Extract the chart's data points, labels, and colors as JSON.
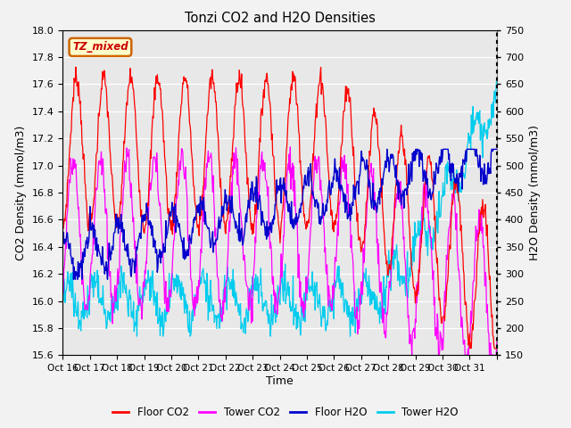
{
  "title": "Tonzi CO2 and H2O Densities",
  "xlabel": "Time",
  "ylabel_left": "CO2 Density (mmol/m3)",
  "ylabel_right": "H2O Density (mmol/m3)",
  "ylim_left": [
    15.6,
    18.0
  ],
  "ylim_right": [
    150,
    750
  ],
  "yticks_left": [
    15.6,
    15.8,
    16.0,
    16.2,
    16.4,
    16.6,
    16.8,
    17.0,
    17.2,
    17.4,
    17.6,
    17.8,
    18.0
  ],
  "yticks_right": [
    150,
    200,
    250,
    300,
    350,
    400,
    450,
    500,
    550,
    600,
    650,
    700,
    750
  ],
  "xtick_labels": [
    "Oct 16",
    "Oct 17",
    "Oct 18",
    "Oct 19",
    "Oct 20",
    "Oct 21",
    "Oct 22",
    "Oct 23",
    "Oct 24",
    "Oct 25",
    "Oct 26",
    "Oct 27",
    "Oct 28",
    "Oct 29",
    "Oct 30",
    "Oct 31"
  ],
  "annotation_text": "TZ_mixed",
  "annotation_bg": "#ffffcc",
  "annotation_edge": "#cc6600",
  "annotation_text_color": "#cc0000",
  "colors": {
    "floor_co2": "#ff0000",
    "tower_co2": "#ff00ff",
    "floor_h2o": "#0000cc",
    "tower_h2o": "#00ccee"
  },
  "legend_labels": [
    "Floor CO2",
    "Tower CO2",
    "Floor H2O",
    "Tower H2O"
  ],
  "plot_bg_color": "#e8e8e8",
  "fig_bg_color": "#f2f2f2"
}
